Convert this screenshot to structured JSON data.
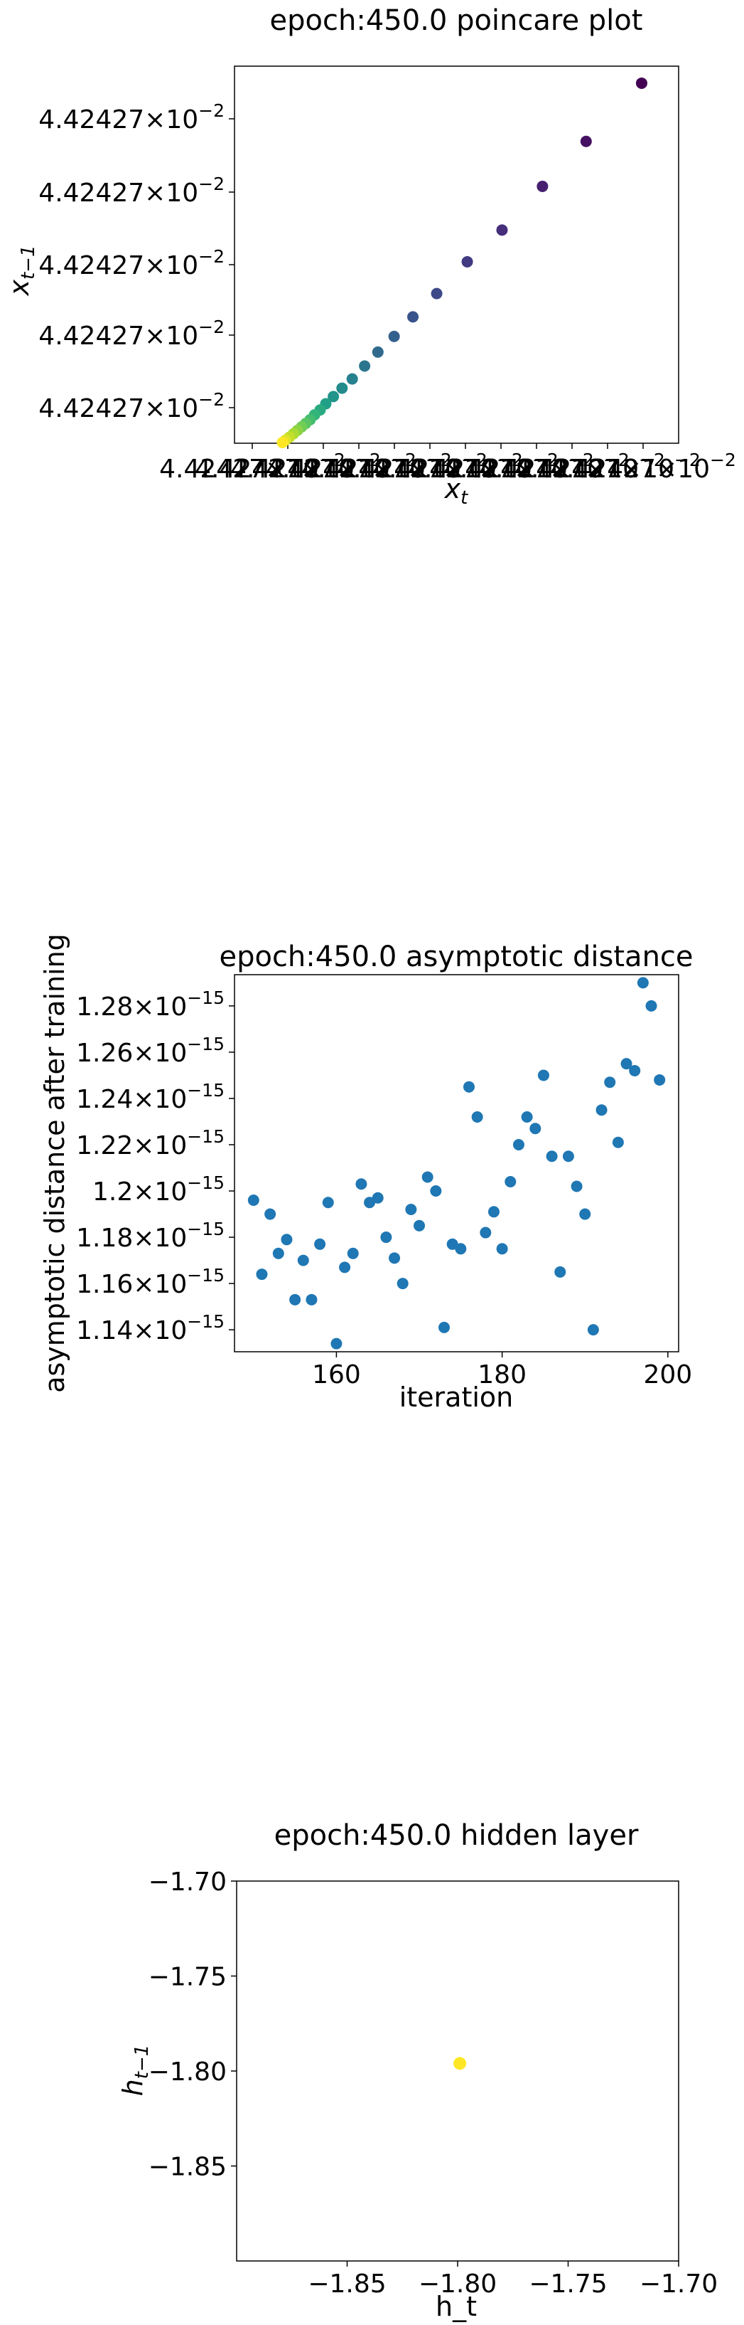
{
  "charts": [
    {
      "title": "epoch:450.0 poincare plot",
      "xlabel_main": "x",
      "xlabel_sub": "t",
      "ylabel_main": "x",
      "ylabel_sub": "t−1",
      "y_ticks": [
        {
          "mantissa": "4.42427",
          "exponent": "−2"
        },
        {
          "mantissa": "4.42427",
          "exponent": "−2"
        },
        {
          "mantissa": "4.42427",
          "exponent": "−2"
        },
        {
          "mantissa": "4.42427",
          "exponent": "−2"
        },
        {
          "mantissa": "4.42427",
          "exponent": "−2"
        }
      ],
      "x_tick_text": "4.42427×10",
      "x_tick_exponent": "−2"
    },
    {
      "title": "epoch:450.0 asymptotic distance",
      "xlabel": "iteration",
      "ylabel": "asymptotic distance after training",
      "x_ticks": [
        "160",
        "180",
        "200"
      ],
      "y_ticks": [
        {
          "mantissa": "1.14",
          "exponent": "−15"
        },
        {
          "mantissa": "1.16",
          "exponent": "−15"
        },
        {
          "mantissa": "1.18",
          "exponent": "−15"
        },
        {
          "mantissa": "1.2",
          "exponent": "−15"
        },
        {
          "mantissa": "1.22",
          "exponent": "−15"
        },
        {
          "mantissa": "1.24",
          "exponent": "−15"
        },
        {
          "mantissa": "1.26",
          "exponent": "−15"
        },
        {
          "mantissa": "1.28",
          "exponent": "−15"
        }
      ]
    },
    {
      "title": "epoch:450.0 hidden layer",
      "xlabel": "h_t",
      "ylabel_main": "h",
      "ylabel_sub": "t−1",
      "x_ticks": [
        "−1.85",
        "−1.80",
        "−1.75",
        "−1.70"
      ],
      "y_ticks": [
        "−1.70",
        "−1.75",
        "−1.80",
        "−1.85"
      ]
    }
  ],
  "chart_data": [
    {
      "type": "scatter",
      "title": "epoch:450.0 poincare plot",
      "xlabel": "x_t",
      "ylabel": "x_{t-1}",
      "colormap": "viridis",
      "color_order": "first points dark purple, last points yellow",
      "points": [
        [
          0.9167,
          0.9548
        ],
        [
          0.7917,
          0.8005
        ],
        [
          0.6934,
          0.6812
        ],
        [
          0.6024,
          0.5654
        ],
        [
          0.5241,
          0.4812
        ],
        [
          0.4553,
          0.3969
        ],
        [
          0.4017,
          0.3351
        ],
        [
          0.3594,
          0.2832
        ],
        [
          0.3229,
          0.2417
        ],
        [
          0.293,
          0.2048
        ],
        [
          0.2651,
          0.1705
        ],
        [
          0.2421,
          0.1461
        ],
        [
          0.2226,
          0.1238
        ],
        [
          0.2055,
          0.1046
        ],
        [
          0.1927,
          0.0882
        ],
        [
          0.1802,
          0.0752
        ],
        [
          0.1703,
          0.0624
        ],
        [
          0.1604,
          0.0525
        ],
        [
          0.1511,
          0.0434
        ],
        [
          0.1419,
          0.0343
        ],
        [
          0.1327,
          0.0251
        ],
        [
          0.1236,
          0.016
        ],
        [
          0.1147,
          0.008
        ],
        [
          0.108,
          0.002
        ]
      ],
      "point_scale_note": "points expressed as fractions of axis range (all tick labels read 4.42427×10^-2; differences below printed precision)"
    },
    {
      "type": "scatter",
      "title": "epoch:450.0 asymptotic distance",
      "xlabel": "iteration",
      "ylabel": "asymptotic distance after training",
      "xlim": [
        147.7,
        201.3
      ],
      "ylim": [
        1.1305,
        1.2935
      ],
      "y_multiplier": "1e-15",
      "color": "#1f77b4",
      "x": [
        150,
        151,
        152,
        153,
        154,
        155,
        156,
        157,
        158,
        159,
        160,
        161,
        162,
        163,
        164,
        165,
        166,
        167,
        168,
        169,
        170,
        171,
        172,
        173,
        174,
        175,
        176,
        177,
        178,
        179,
        180,
        181,
        182,
        183,
        184,
        185,
        186,
        187,
        188,
        189,
        190,
        191,
        192,
        193,
        194,
        195,
        196,
        197,
        198,
        199
      ],
      "y": [
        1.196,
        1.164,
        1.19,
        1.173,
        1.179,
        1.153,
        1.17,
        1.153,
        1.177,
        1.195,
        1.134,
        1.167,
        1.173,
        1.203,
        1.195,
        1.197,
        1.18,
        1.171,
        1.16,
        1.192,
        1.185,
        1.206,
        1.2,
        1.141,
        1.177,
        1.175,
        1.245,
        1.232,
        1.182,
        1.191,
        1.175,
        1.204,
        1.22,
        1.232,
        1.227,
        1.25,
        1.215,
        1.165,
        1.215,
        1.202,
        1.19,
        1.14,
        1.235,
        1.247,
        1.221,
        1.255,
        1.252,
        1.29,
        1.28,
        1.248
      ]
    },
    {
      "type": "scatter",
      "title": "epoch:450.0 hidden layer",
      "xlabel": "h_t",
      "ylabel": "h_{t-1}",
      "xlim": [
        -1.9,
        -1.7
      ],
      "ylim": [
        -1.9,
        -1.7
      ],
      "points": [
        [
          -1.799,
          -1.796
        ]
      ],
      "color": "#fde725"
    }
  ]
}
